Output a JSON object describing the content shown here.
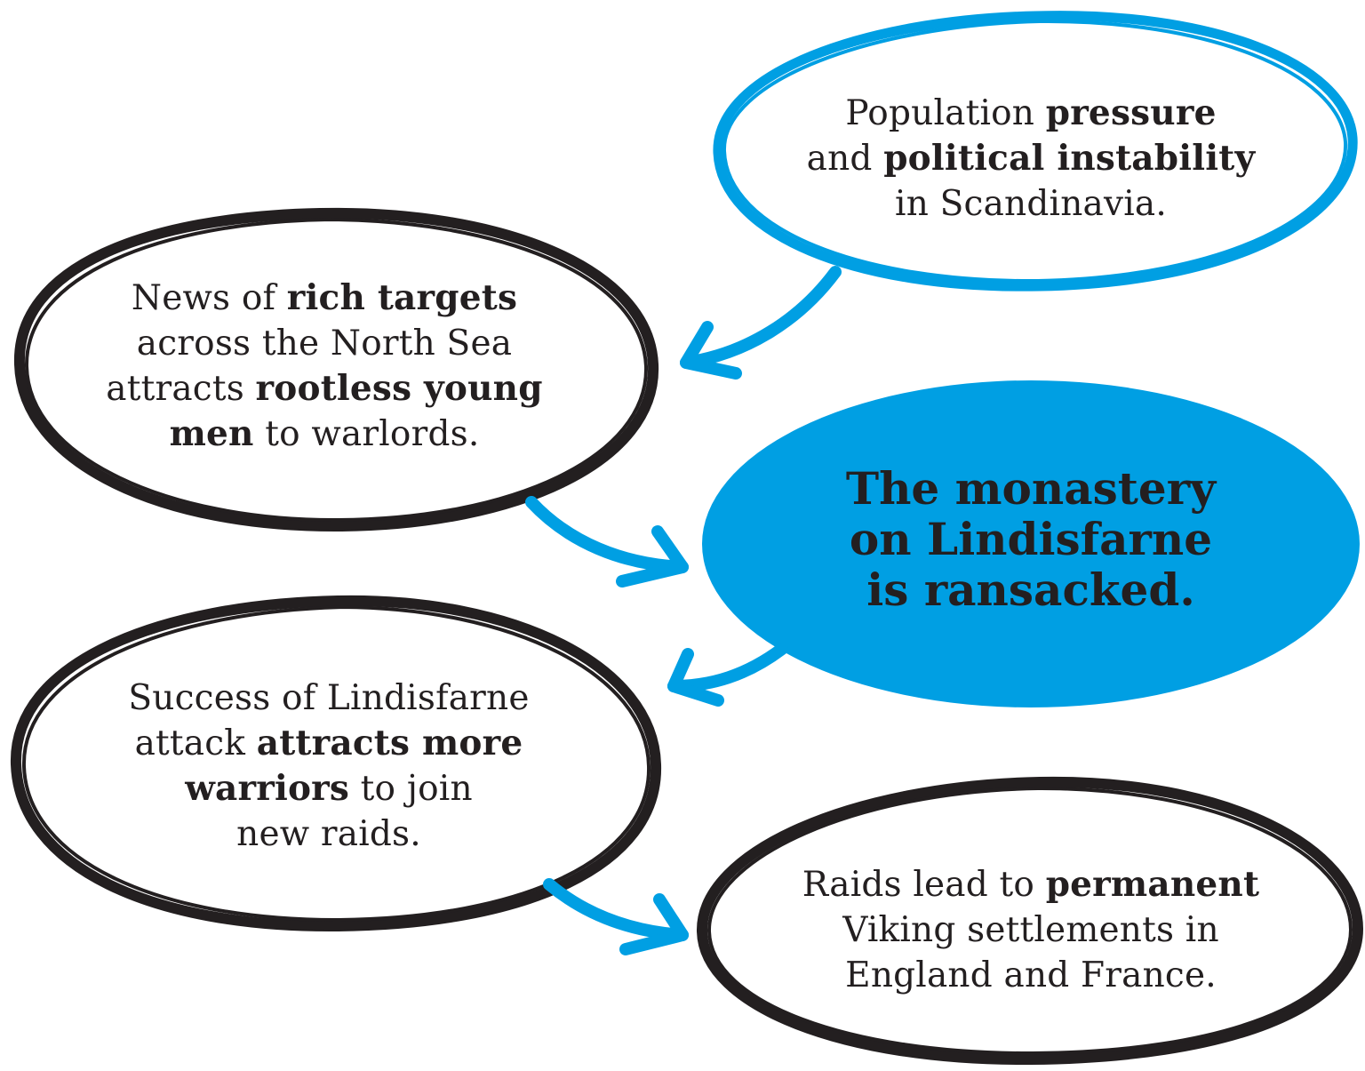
{
  "colors": {
    "blue": "#009fe3",
    "black": "#231f20",
    "center_fill": "#009fe3"
  },
  "nodes": {
    "population": {
      "lines": [
        [
          {
            "t": "Population ",
            "b": false
          },
          {
            "t": "pressure",
            "b": true
          }
        ],
        [
          {
            "t": "and ",
            "b": false
          },
          {
            "t": "political instability",
            "b": true
          }
        ],
        [
          {
            "t": "in Scandinavia.",
            "b": false
          }
        ]
      ]
    },
    "news": {
      "lines": [
        [
          {
            "t": "News of ",
            "b": false
          },
          {
            "t": "rich targets",
            "b": true
          }
        ],
        [
          {
            "t": "across the North Sea",
            "b": false
          }
        ],
        [
          {
            "t": "attracts ",
            "b": false
          },
          {
            "t": "rootless young",
            "b": true
          }
        ],
        [
          {
            "t": "men",
            "b": true
          },
          {
            "t": " to warlords.",
            "b": false
          }
        ]
      ]
    },
    "monastery": {
      "lines": [
        [
          {
            "t": "The monastery",
            "b": true
          }
        ],
        [
          {
            "t": "on Lindisfarne",
            "b": true
          }
        ],
        [
          {
            "t": "is ransacked.",
            "b": true
          }
        ]
      ]
    },
    "success": {
      "lines": [
        [
          {
            "t": "Success of Lindisfarne",
            "b": false
          }
        ],
        [
          {
            "t": "attack ",
            "b": false
          },
          {
            "t": "attracts more",
            "b": true
          }
        ],
        [
          {
            "t": "warriors",
            "b": true
          },
          {
            "t": " to join",
            "b": false
          }
        ],
        [
          {
            "t": "new raids.",
            "b": false
          }
        ]
      ]
    },
    "raids": {
      "lines": [
        [
          {
            "t": "Raids lead to ",
            "b": false
          },
          {
            "t": "permanent",
            "b": true
          }
        ],
        [
          {
            "t": "Viking settlements in",
            "b": false
          }
        ],
        [
          {
            "t": "England and France.",
            "b": false
          }
        ]
      ]
    }
  },
  "edges": [
    {
      "from": "population",
      "to": "news"
    },
    {
      "from": "news",
      "to": "monastery"
    },
    {
      "from": "monastery",
      "to": "success"
    },
    {
      "from": "success",
      "to": "raids"
    }
  ]
}
